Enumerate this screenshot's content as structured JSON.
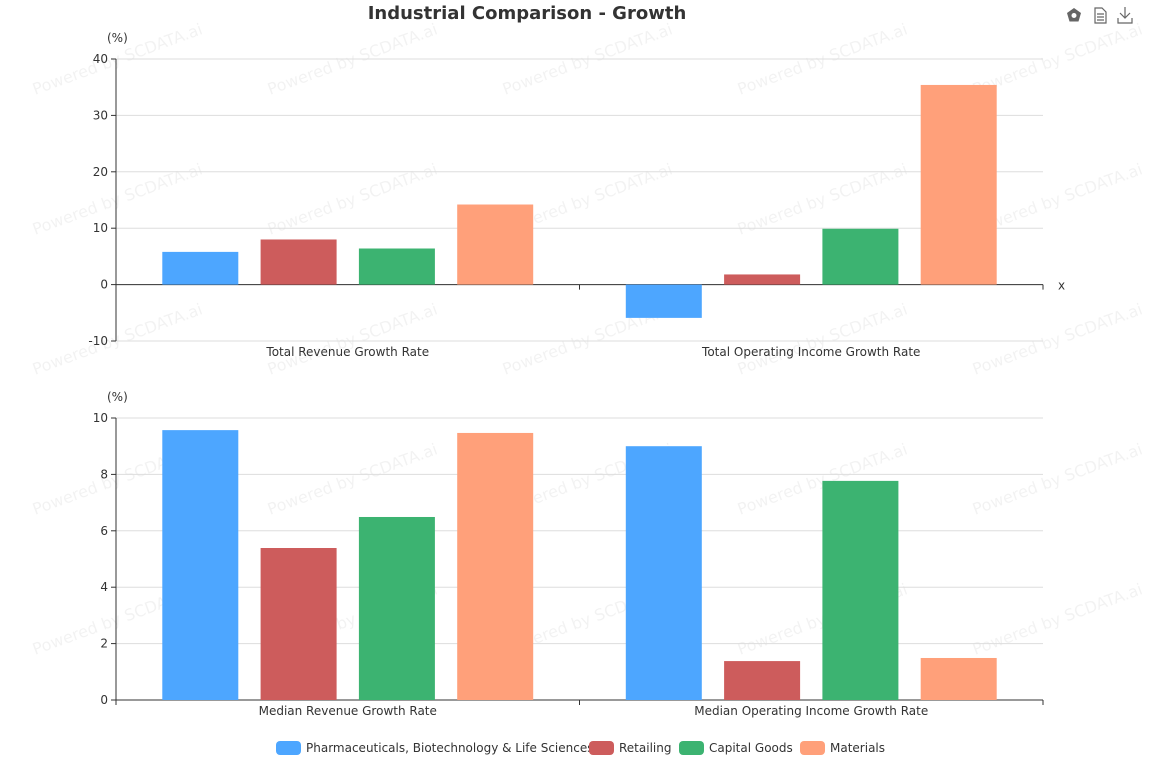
{
  "title": "Industrial Comparison - Growth",
  "watermark": "Powered by SCDATA.ai",
  "toolbar": [
    "restore-icon",
    "data-view-icon",
    "download-icon"
  ],
  "chart_data": [
    {
      "type": "bar",
      "ylabel": "(%)",
      "xlabel": "x",
      "ylim": [
        -10,
        40
      ],
      "yticks": [
        -10,
        0,
        10,
        20,
        30,
        40
      ],
      "grid": true,
      "categories": [
        "Total Revenue Growth Rate",
        "Total Operating Income Growth Rate"
      ],
      "series": [
        {
          "name": "Pharmaceuticals, Biotechnology & Life Sciences",
          "color": "#4da6ff",
          "values": [
            5.8,
            -5.9
          ]
        },
        {
          "name": "Retailing",
          "color": "#cd5c5c",
          "values": [
            8.0,
            1.8
          ]
        },
        {
          "name": "Capital Goods",
          "color": "#3cb371",
          "values": [
            6.4,
            9.9
          ]
        },
        {
          "name": "Materials",
          "color": "#ffa07a",
          "values": [
            14.2,
            35.4
          ]
        }
      ]
    },
    {
      "type": "bar",
      "ylabel": "(%)",
      "ylim": [
        0,
        10
      ],
      "yticks": [
        0,
        2,
        4,
        6,
        8,
        10
      ],
      "grid": true,
      "categories": [
        "Median Revenue Growth Rate",
        "Median Operating Income Growth Rate"
      ],
      "series": [
        {
          "name": "Pharmaceuticals, Biotechnology & Life Sciences",
          "color": "#4da6ff",
          "values": [
            9.57,
            9.0
          ]
        },
        {
          "name": "Retailing",
          "color": "#cd5c5c",
          "values": [
            5.39,
            1.38
          ]
        },
        {
          "name": "Capital Goods",
          "color": "#3cb371",
          "values": [
            6.49,
            7.77
          ]
        },
        {
          "name": "Materials",
          "color": "#ffa07a",
          "values": [
            9.47,
            1.49
          ]
        }
      ]
    }
  ],
  "legend": {
    "position": "bottom",
    "items": [
      "Pharmaceuticals, Biotechnology & Life Sciences",
      "Retailing",
      "Capital Goods",
      "Materials"
    ]
  }
}
